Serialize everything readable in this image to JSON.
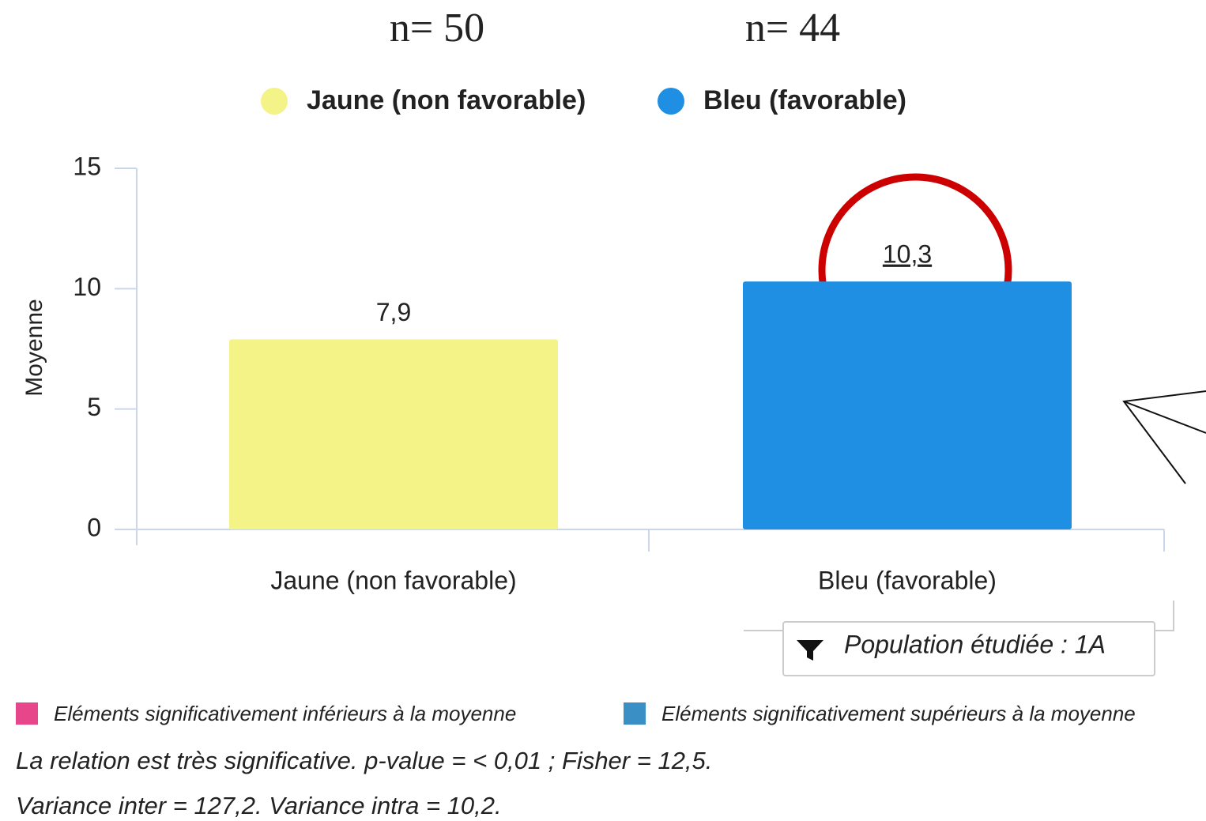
{
  "chart_data": {
    "type": "bar",
    "annotations": [
      "n= 50",
      "n= 44"
    ],
    "categories": [
      "Jaune (non favorable)",
      "Bleu (favorable)"
    ],
    "values": [
      7.9,
      10.3
    ],
    "value_labels": [
      "7,9",
      "10,3"
    ],
    "colors": [
      "#f3f388",
      "#1f8fe3"
    ],
    "ylabel": "Moyenne",
    "ylim": [
      0,
      15
    ],
    "yticks": [
      0,
      5,
      10,
      15
    ],
    "legend": "top"
  },
  "filter": {
    "label": "Population étudiée : 1A"
  },
  "footer_legend": [
    {
      "label": "Eléments significativement inférieurs à la moyenne",
      "color": "#e8468a"
    },
    {
      "label": "Eléments significativement supérieurs à la moyenne",
      "color": "#3a8fc4"
    }
  ],
  "notes": [
    "La relation est très significative. p-value = < 0,01 ; Fisher = 12,5.",
    "Variance inter = 127,2. Variance intra = 10,2."
  ]
}
